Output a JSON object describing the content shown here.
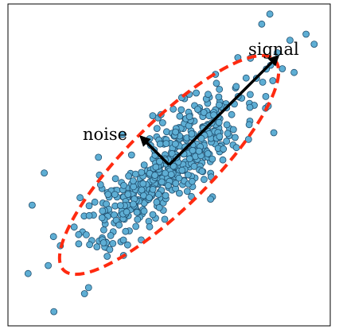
{
  "chart_data": {
    "type": "scatter",
    "title": "",
    "xlabel": "",
    "ylabel": "",
    "grid": false,
    "legend": "none",
    "xlim": [
      -4,
      4
    ],
    "ylim": [
      -4,
      4
    ],
    "colors": {
      "point_fill": "#5eaed4",
      "point_edge": "#1f4e6e",
      "ellipse": "#ff2a10",
      "arrow": "#000000"
    },
    "ellipse": {
      "center": [
        0,
        0
      ],
      "semi_major": 3.7,
      "semi_minor": 1.05,
      "angle_deg": 45
    },
    "arrows": [
      {
        "name": "signal",
        "from": [
          0,
          0
        ],
        "to": [
          2.7,
          2.7
        ]
      },
      {
        "name": "noise",
        "from": [
          0,
          0
        ],
        "to": [
          -0.7,
          0.7
        ]
      }
    ],
    "annotations": [
      {
        "text": "signal",
        "anchor": "signal"
      },
      {
        "text": "noise",
        "anchor": "noise"
      }
    ],
    "series": [
      {
        "seed": 7,
        "count": 520,
        "sigma_major": 1.28,
        "sigma_minor": 0.42,
        "angle_deg": 45,
        "extra_points": [
          [
            2.5,
            3.75
          ],
          [
            2.3,
            3.5
          ],
          [
            3.0,
            3.1
          ],
          [
            3.4,
            3.25
          ],
          [
            3.6,
            3.0
          ],
          [
            -3.5,
            -2.7
          ],
          [
            -3.0,
            -2.5
          ],
          [
            -2.1,
            -3.2
          ],
          [
            -2.0,
            -3.05
          ],
          [
            -3.4,
            -1.0
          ],
          [
            -3.1,
            -0.2
          ],
          [
            2.4,
            1.7
          ],
          [
            2.6,
            0.8
          ]
        ]
      }
    ]
  }
}
